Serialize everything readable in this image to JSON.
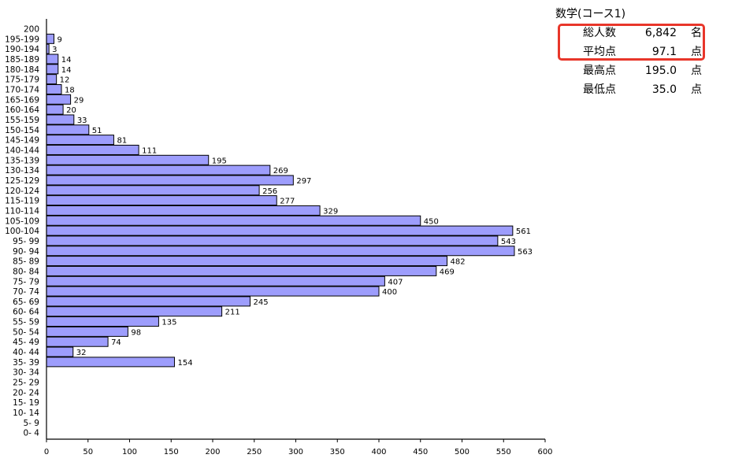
{
  "chart_data": {
    "type": "bar",
    "orientation": "horizontal",
    "bar_color": "#9d9dfc",
    "categories": [
      "200",
      "195-199",
      "190-194",
      "185-189",
      "180-184",
      "175-179",
      "170-174",
      "165-169",
      "160-164",
      "155-159",
      "150-154",
      "145-149",
      "140-144",
      "135-139",
      "130-134",
      "125-129",
      "120-124",
      "115-119",
      "110-114",
      "105-109",
      "100-104",
      "95- 99",
      "90- 94",
      "85- 89",
      "80- 84",
      "75- 79",
      "70- 74",
      "65- 69",
      "60- 64",
      "55- 59",
      "50- 54",
      "45- 49",
      "40- 44",
      "35- 39",
      "30- 34",
      "25- 29",
      "20- 24",
      "15- 19",
      "10- 14",
      "5- 9",
      "0- 4"
    ],
    "values": [
      null,
      9,
      3,
      14,
      14,
      12,
      18,
      29,
      20,
      33,
      51,
      81,
      111,
      195,
      269,
      297,
      256,
      277,
      329,
      450,
      561,
      543,
      563,
      482,
      469,
      407,
      400,
      245,
      211,
      135,
      98,
      74,
      32,
      154,
      null,
      null,
      null,
      null,
      null,
      null,
      null
    ],
    "xlim": [
      0,
      600
    ],
    "xticks": [
      0,
      50,
      100,
      150,
      200,
      250,
      300,
      350,
      400,
      450,
      500,
      550,
      600
    ],
    "grid": false
  },
  "stats": {
    "title": "数学(コース1)",
    "rows": [
      {
        "label": "総人数",
        "value": "6,842",
        "unit": "名"
      },
      {
        "label": "平均点",
        "value": "97.1",
        "unit": "点"
      },
      {
        "label": "最高点",
        "value": "195.0",
        "unit": "点"
      },
      {
        "label": "最低点",
        "value": "35.0",
        "unit": "点"
      }
    ],
    "highlight_color": "#e8362a"
  }
}
